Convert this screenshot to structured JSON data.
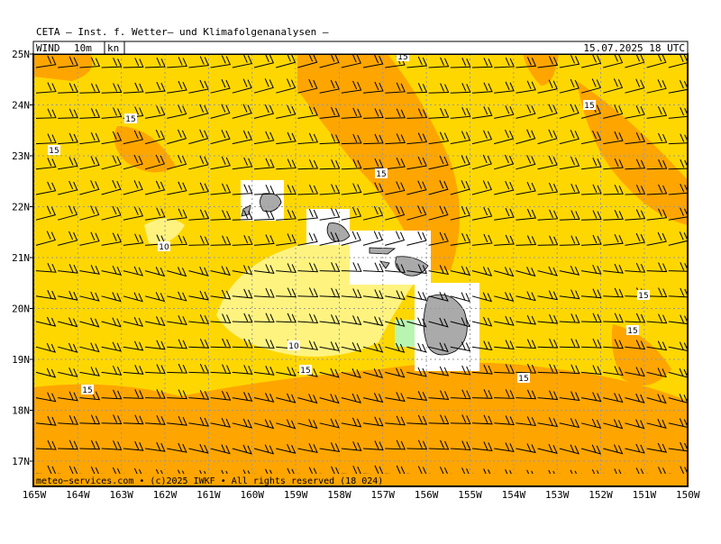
{
  "header": {
    "title": "CETA — Inst. f. Wetter— und Klimafolgenanalysen —",
    "variable": "WIND",
    "level": "10m",
    "unit": "kn",
    "valid_time": "15.07.2025 18 UTC"
  },
  "latitude_labels": [
    "25N",
    "24N",
    "23N",
    "22N",
    "21N",
    "20N",
    "19N",
    "18N",
    "17N"
  ],
  "longitude_labels": [
    "165W",
    "164W",
    "163W",
    "162W",
    "161W",
    "160W",
    "159W",
    "158W",
    "157W",
    "156W",
    "155W",
    "154W",
    "153W",
    "152W",
    "151W",
    "150W"
  ],
  "contour_labels": [
    "15",
    "15",
    "15",
    "15",
    "10",
    "15",
    "10",
    "15",
    "15",
    "15",
    "15",
    "15"
  ],
  "footer": "meteo−services.com • (c)2025 IWKF • All rights reserved (18 024)"
}
